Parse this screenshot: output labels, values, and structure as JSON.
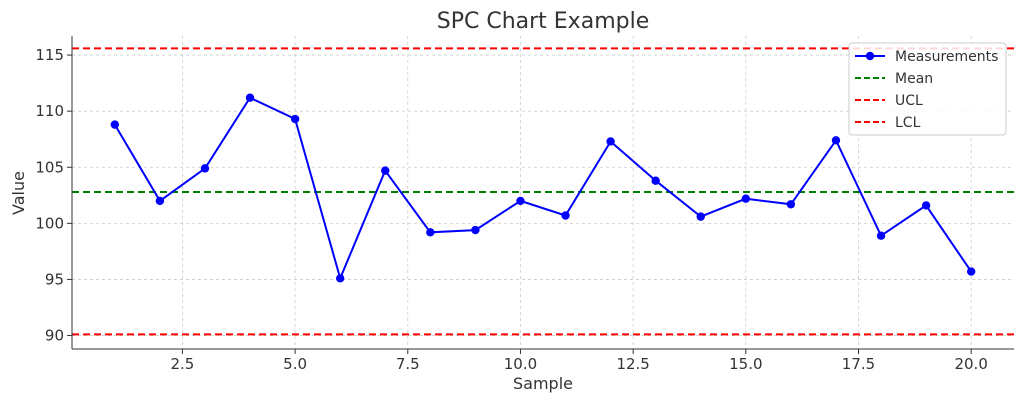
{
  "chart_data": {
    "type": "line",
    "title": "SPC Chart Example",
    "xlabel": "Sample",
    "ylabel": "Value",
    "xlim": [
      0.05,
      20.95
    ],
    "ylim": [
      88.8,
      116.7
    ],
    "xticks": [
      2.5,
      5.0,
      7.5,
      10.0,
      12.5,
      15.0,
      17.5,
      20.0
    ],
    "xtick_labels": [
      "2.5",
      "5.0",
      "7.5",
      "10.0",
      "12.5",
      "15.0",
      "17.5",
      "20.0"
    ],
    "yticks": [
      90,
      95,
      100,
      105,
      110,
      115
    ],
    "ytick_labels": [
      "90",
      "95",
      "100",
      "105",
      "110",
      "115"
    ],
    "grid": true,
    "legend_position": "top-right",
    "series": [
      {
        "name": "Measurements",
        "color": "#0000ff",
        "style": "solid",
        "marker": "circle",
        "x": [
          1,
          2,
          3,
          4,
          5,
          6,
          7,
          8,
          9,
          10,
          11,
          12,
          13,
          14,
          15,
          16,
          17,
          18,
          19,
          20
        ],
        "values": [
          108.8,
          102.0,
          104.9,
          111.2,
          109.3,
          95.1,
          104.7,
          99.2,
          99.4,
          102.0,
          100.7,
          107.3,
          103.8,
          100.6,
          102.2,
          101.7,
          107.4,
          98.9,
          101.6,
          95.7
        ]
      }
    ],
    "reference_lines": [
      {
        "name": "Mean",
        "value": 102.8,
        "color": "#008000",
        "style": "dashed"
      },
      {
        "name": "UCL",
        "value": 115.6,
        "color": "#ff0000",
        "style": "dashed"
      },
      {
        "name": "LCL",
        "value": 90.1,
        "color": "#ff0000",
        "style": "dashed"
      }
    ]
  }
}
